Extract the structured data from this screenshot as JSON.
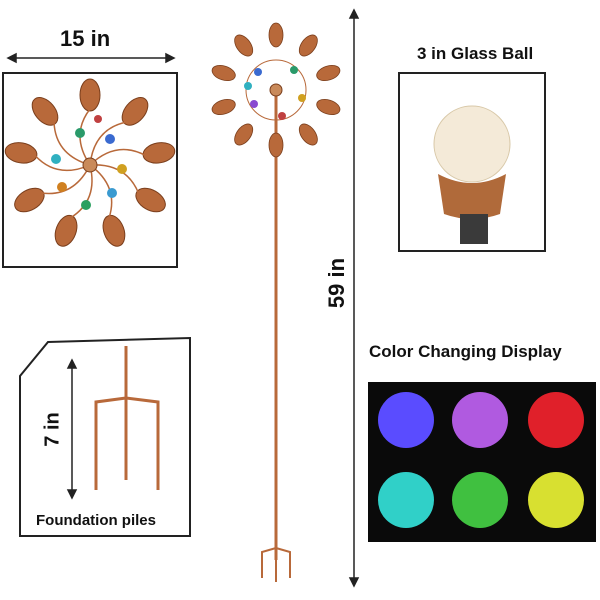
{
  "labels": {
    "width": "15 in",
    "glass_ball": "3 in Glass Ball",
    "height": "59 in",
    "color_display": "Color Changing Display",
    "stake_height": "7 in",
    "foundation": "Foundation piles"
  },
  "colors": {
    "copper": "#b8693a",
    "panel_bg": "#0a0a0a",
    "balls": [
      "#5a4cff",
      "#b05ae0",
      "#e0202a",
      "#30d0c8",
      "#40c040",
      "#d8e030"
    ]
  }
}
